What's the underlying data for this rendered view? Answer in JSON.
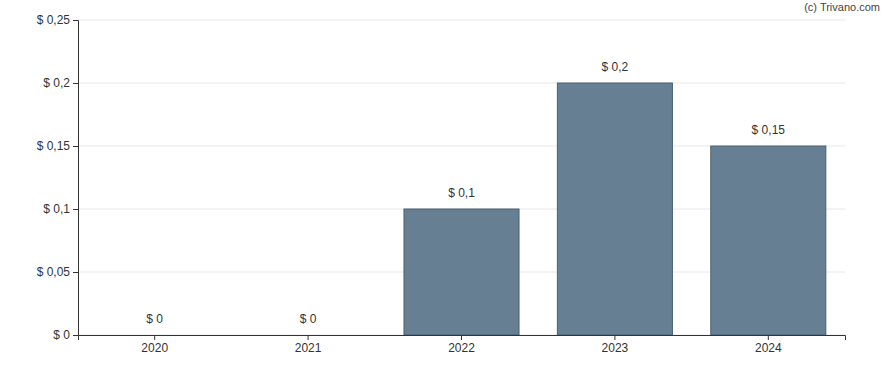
{
  "chart_data": {
    "type": "bar",
    "categories": [
      "2020",
      "2021",
      "2022",
      "2023",
      "2024"
    ],
    "values": [
      0,
      0,
      0.1,
      0.2,
      0.15
    ],
    "value_labels": [
      "$ 0",
      "$ 0",
      "$ 0,1",
      "$ 0,2",
      "$ 0,15"
    ],
    "data_labels": true,
    "color": "#667f92",
    "ylim": [
      0,
      0.25
    ],
    "yticks": [
      {
        "value": 0,
        "label": "$ 0"
      },
      {
        "value": 0.05,
        "label": "$ 0,05"
      },
      {
        "value": 0.1,
        "label": "$ 0,1"
      },
      {
        "value": 0.15,
        "label": "$ 0,15"
      },
      {
        "value": 0.2,
        "label": "$ 0,2"
      },
      {
        "value": 0.25,
        "label": "$ 0,25"
      }
    ],
    "grid": true,
    "annotations": [
      "(c) Trivano.com"
    ]
  }
}
